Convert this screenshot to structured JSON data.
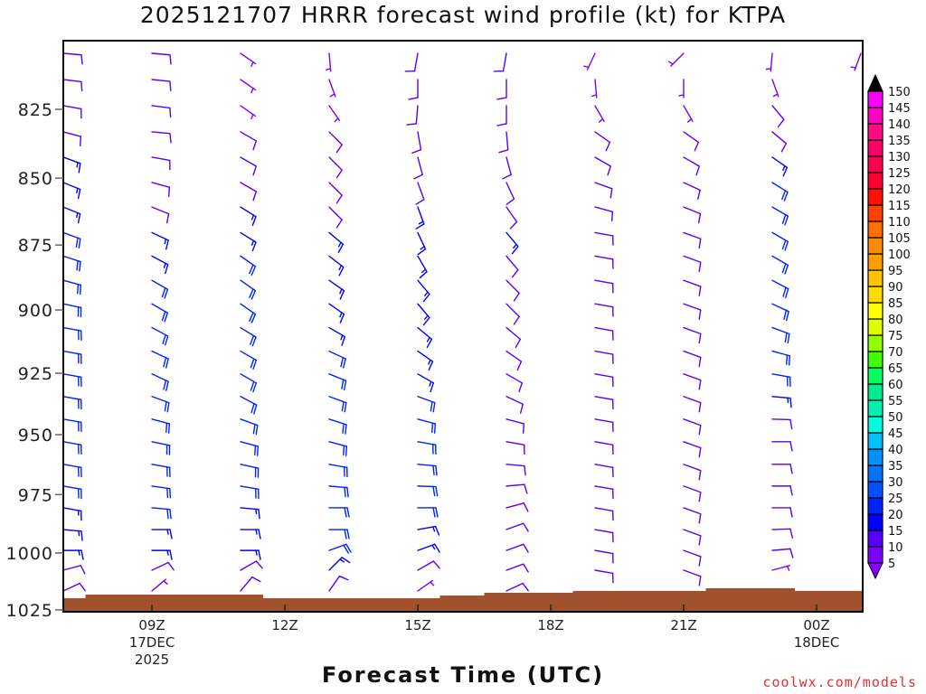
{
  "chart_data": {
    "type": "wind_barb_profile",
    "title": "2025121707 HRRR forecast wind profile (kt) for KTPA",
    "xlabel": "Forecast Time (UTC)",
    "ylabel": "",
    "credit": "coolwx.com/models",
    "y_axis": {
      "scale": "log",
      "lim": [
        801,
        1026
      ],
      "ticks": [
        825,
        850,
        875,
        900,
        925,
        950,
        975,
        1000,
        1025
      ]
    },
    "x_axis": {
      "unit": "hours since 00Z 17DEC 2025",
      "lim": [
        7,
        25
      ],
      "ticks": [
        {
          "hour": 9,
          "lines": [
            "09Z",
            "17DEC",
            "2025"
          ]
        },
        {
          "hour": 12,
          "lines": [
            "12Z"
          ]
        },
        {
          "hour": 15,
          "lines": [
            "15Z"
          ]
        },
        {
          "hour": 18,
          "lines": [
            "18Z"
          ]
        },
        {
          "hour": 21,
          "lines": [
            "21Z"
          ]
        },
        {
          "hour": 24,
          "lines": [
            "00Z",
            "18DEC"
          ]
        }
      ]
    },
    "levels_hpa": [
      805.2,
      814.4,
      823.7,
      833.1,
      842.3,
      851.6,
      860.7,
      870.3,
      879.2,
      888.5,
      897.6,
      906.9,
      916.2,
      925.3,
      934.4,
      943.6,
      952.9,
      962.3,
      971.4,
      980.6,
      989.9,
      998.9,
      1007.5,
      1016.6
    ],
    "columns": [
      {
        "hour": 7,
        "speed_kt": [
          10,
          10,
          10,
          10,
          15,
          15,
          15,
          20,
          20,
          20,
          20,
          20,
          20,
          20,
          20,
          20,
          20,
          20,
          20,
          15,
          15,
          15,
          10,
          10
        ],
        "dir_deg": [
          95,
          97,
          100,
          105,
          110,
          112,
          112,
          110,
          108,
          105,
          102,
          100,
          100,
          100,
          100,
          100,
          100,
          100,
          100,
          100,
          95,
          90,
          75,
          65
        ]
      },
      {
        "hour": 9,
        "speed_kt": [
          10,
          10,
          10,
          10,
          10,
          10,
          10,
          15,
          15,
          20,
          20,
          20,
          20,
          20,
          20,
          20,
          20,
          20,
          20,
          20,
          15,
          15,
          10,
          5
        ],
        "dir_deg": [
          95,
          96,
          97,
          95,
          100,
          105,
          112,
          115,
          118,
          120,
          120,
          118,
          115,
          115,
          110,
          105,
          102,
          100,
          98,
          95,
          90,
          90,
          65,
          50
        ]
      },
      {
        "hour": 11,
        "speed_kt": [
          5,
          5,
          5,
          10,
          10,
          10,
          15,
          15,
          20,
          20,
          20,
          20,
          20,
          20,
          20,
          20,
          20,
          20,
          20,
          15,
          15,
          15,
          10,
          10
        ],
        "dir_deg": [
          125,
          125,
          125,
          120,
          120,
          120,
          122,
          122,
          125,
          125,
          125,
          122,
          120,
          120,
          118,
          110,
          105,
          102,
          100,
          95,
          90,
          90,
          60,
          40
        ]
      },
      {
        "hour": 13,
        "speed_kt": [
          5,
          5,
          5,
          10,
          10,
          10,
          10,
          15,
          15,
          15,
          15,
          15,
          20,
          20,
          20,
          20,
          20,
          20,
          20,
          20,
          20,
          20,
          15,
          10
        ],
        "dir_deg": [
          175,
          160,
          145,
          135,
          135,
          135,
          135,
          130,
          128,
          125,
          125,
          120,
          115,
          112,
          110,
          108,
          105,
          100,
          95,
          90,
          90,
          70,
          45,
          35
        ]
      },
      {
        "hour": 15,
        "speed_kt": [
          10,
          10,
          10,
          10,
          10,
          10,
          15,
          15,
          15,
          15,
          15,
          15,
          15,
          15,
          20,
          20,
          20,
          20,
          20,
          20,
          15,
          15,
          10,
          5
        ],
        "dir_deg": [
          190,
          180,
          185,
          170,
          165,
          160,
          160,
          155,
          150,
          140,
          140,
          130,
          125,
          120,
          110,
          105,
          100,
          95,
          92,
          90,
          80,
          70,
          60,
          55
        ]
      },
      {
        "hour": 17,
        "speed_kt": [
          10,
          10,
          10,
          10,
          10,
          10,
          10,
          15,
          10,
          10,
          10,
          10,
          10,
          10,
          10,
          10,
          10,
          10,
          10,
          10,
          10,
          10,
          10,
          10
        ],
        "dir_deg": [
          190,
          180,
          180,
          175,
          165,
          155,
          145,
          140,
          140,
          135,
          135,
          130,
          125,
          120,
          115,
          105,
          100,
          95,
          85,
          75,
          70,
          70,
          70,
          65
        ]
      },
      {
        "hour": 19,
        "speed_kt": [
          5,
          5,
          5,
          10,
          10,
          10,
          10,
          10,
          10,
          10,
          10,
          10,
          10,
          10,
          10,
          10,
          10,
          10,
          10,
          10,
          10,
          10,
          10
        ],
        "dir_deg": [
          205,
          175,
          150,
          125,
          120,
          110,
          105,
          100,
          100,
          100,
          100,
          100,
          100,
          100,
          100,
          100,
          100,
          100,
          100,
          100,
          100,
          100,
          100
        ]
      },
      {
        "hour": 21,
        "speed_kt": [
          5,
          5,
          5,
          10,
          10,
          10,
          10,
          10,
          10,
          10,
          10,
          10,
          10,
          10,
          10,
          10,
          10,
          10,
          10,
          10,
          10,
          10,
          10
        ],
        "dir_deg": [
          225,
          180,
          150,
          125,
          120,
          115,
          112,
          110,
          110,
          110,
          110,
          110,
          110,
          110,
          110,
          110,
          110,
          110,
          110,
          110,
          110,
          110,
          110
        ]
      },
      {
        "hour": 23,
        "speed_kt": [
          5,
          5,
          10,
          10,
          15,
          20,
          20,
          20,
          20,
          20,
          20,
          20,
          20,
          20,
          15,
          10,
          10,
          10,
          10,
          10,
          10,
          10,
          5
        ],
        "dir_deg": [
          185,
          160,
          140,
          130,
          125,
          122,
          120,
          120,
          120,
          118,
          115,
          110,
          105,
          100,
          95,
          92,
          90,
          90,
          90,
          90,
          88,
          85,
          75
        ]
      },
      {
        "hour": 25,
        "speed_kt": [
          5
        ],
        "dir_deg": [
          200
        ]
      }
    ],
    "surface_pressure_hpa": {
      "hours": [
        7,
        8,
        9,
        10,
        11,
        12,
        13,
        14,
        15,
        16,
        17,
        18,
        19,
        20,
        21,
        22,
        23,
        24,
        25
      ],
      "values": [
        1019.8,
        1018.2,
        1018.2,
        1018.2,
        1018.2,
        1019.8,
        1019.8,
        1019.8,
        1019.8,
        1018.6,
        1017.4,
        1017.4,
        1016.6,
        1016.6,
        1016.6,
        1015.4,
        1015.4,
        1016.6,
        1016.6
      ]
    },
    "colorbar": {
      "unit": "kt",
      "ticks": [
        5,
        10,
        15,
        20,
        25,
        30,
        35,
        40,
        45,
        50,
        55,
        60,
        65,
        70,
        75,
        80,
        85,
        90,
        95,
        100,
        105,
        110,
        115,
        120,
        125,
        130,
        135,
        140,
        145,
        150
      ],
      "colors": [
        "#7a00ff",
        "#5800ff",
        "#0000ff",
        "#0022ff",
        "#0050ff",
        "#0072ff",
        "#0090ff",
        "#00c0ff",
        "#00ffe0",
        "#00f0b0",
        "#00ea90",
        "#00ff60",
        "#40ff00",
        "#90ff00",
        "#e0ff00",
        "#ffff00",
        "#ffdc00",
        "#ffc400",
        "#ffa000",
        "#ff8c00",
        "#ff7000",
        "#ff4000",
        "#ff1000",
        "#ff0030",
        "#ff0050",
        "#ff0068",
        "#ff0a80",
        "#ff00c0",
        "#ff00ff"
      ],
      "over_color": "#000000",
      "under_color": "#8a00ff"
    },
    "surface_color": "#a0522d"
  }
}
